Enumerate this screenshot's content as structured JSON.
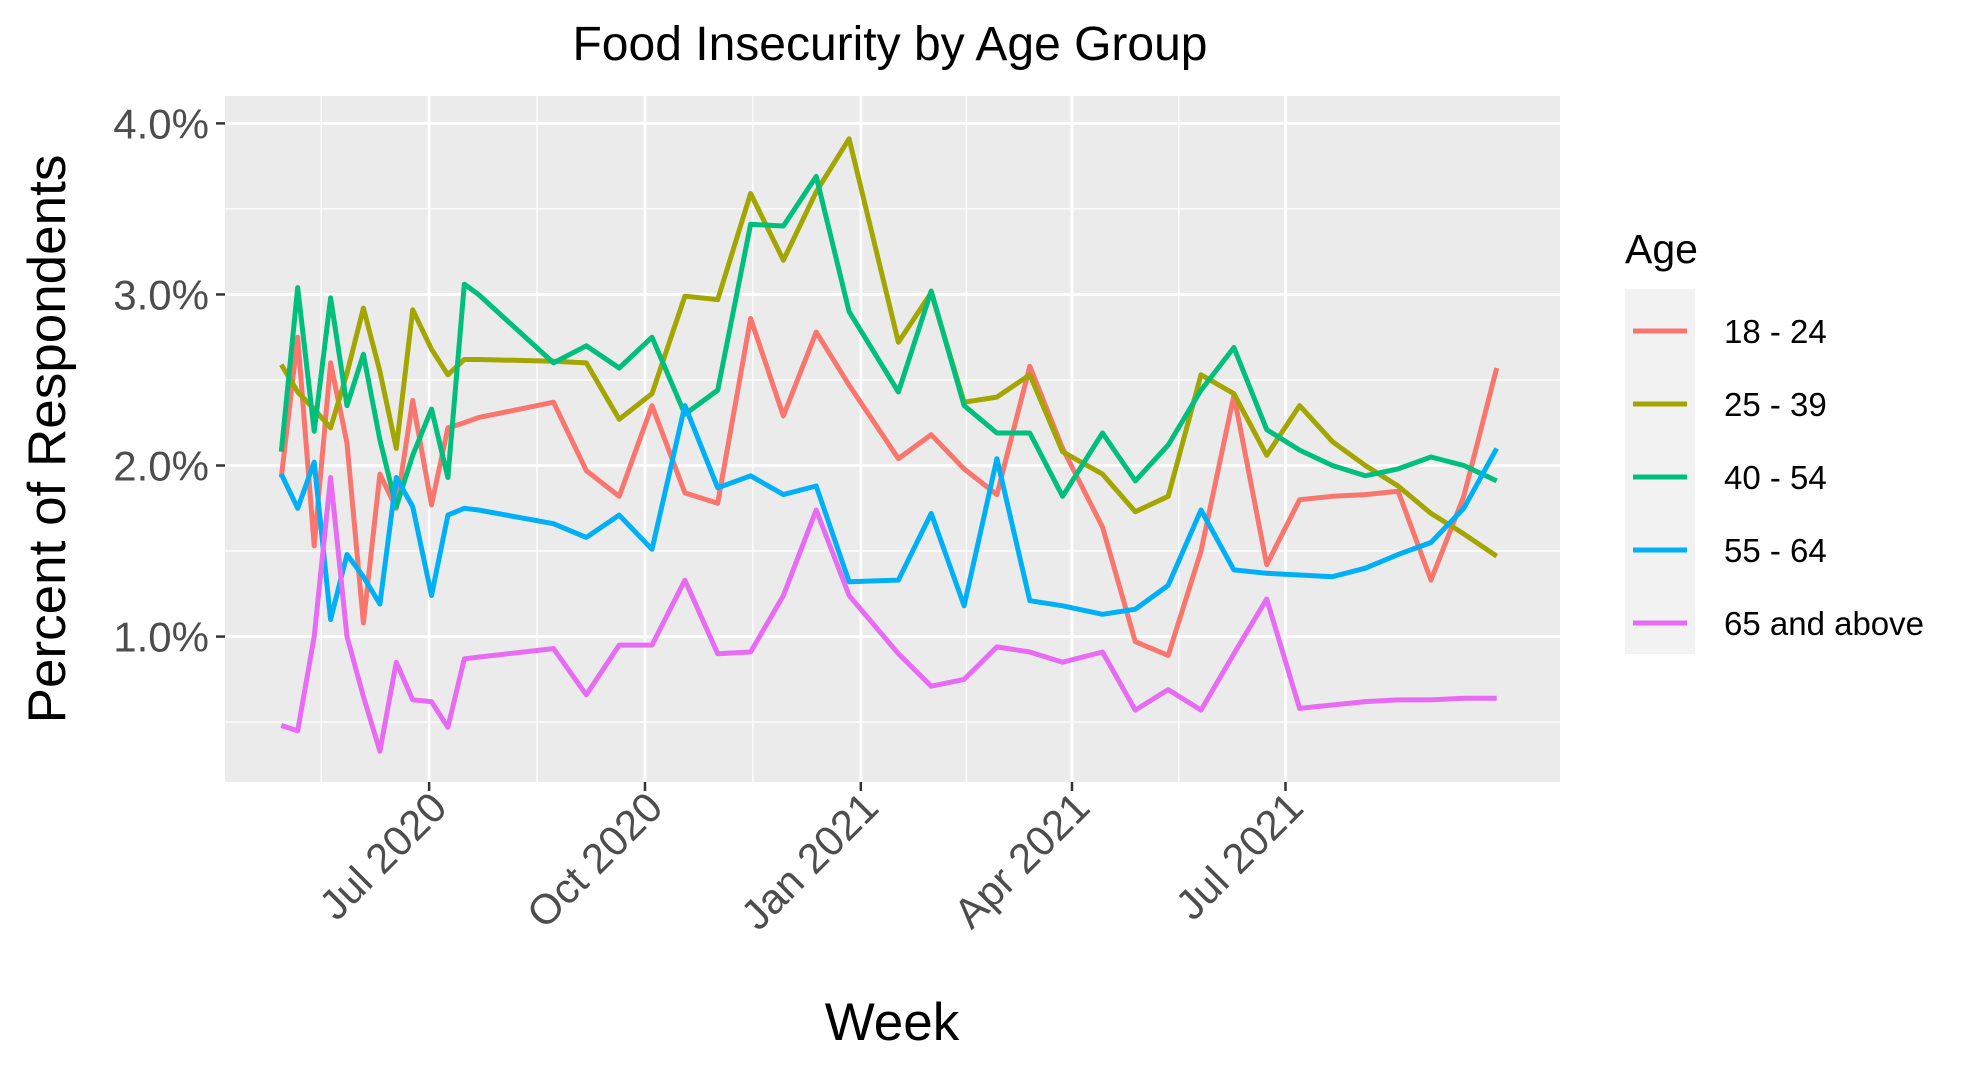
{
  "chart_data": {
    "type": "line",
    "title": "Food Insecurity by Age Group",
    "xlabel": "Week",
    "ylabel": "Percent of Respondents",
    "x": [
      "2020-04-29",
      "2020-05-06",
      "2020-05-13",
      "2020-05-20",
      "2020-05-27",
      "2020-06-03",
      "2020-06-10",
      "2020-06-17",
      "2020-06-24",
      "2020-07-02",
      "2020-07-09",
      "2020-07-16",
      "2020-07-22",
      "2020-08-23",
      "2020-09-06",
      "2020-09-20",
      "2020-10-04",
      "2020-10-18",
      "2020-11-01",
      "2020-11-15",
      "2020-11-29",
      "2020-12-13",
      "2020-12-27",
      "2021-01-17",
      "2021-01-31",
      "2021-02-14",
      "2021-02-28",
      "2021-03-14",
      "2021-03-28",
      "2021-04-14",
      "2021-04-28",
      "2021-05-12",
      "2021-05-26",
      "2021-06-09",
      "2021-06-23",
      "2021-07-07",
      "2021-07-21",
      "2021-08-04",
      "2021-08-18",
      "2021-09-01",
      "2021-09-15",
      "2021-09-29"
    ],
    "x_ticks": [
      "Jul 2020",
      "Oct 2020",
      "Jan 2021",
      "Apr 2021",
      "Jul 2021"
    ],
    "x_tick_dates": [
      "2020-07-01",
      "2020-10-01",
      "2021-01-01",
      "2021-04-01",
      "2021-07-01"
    ],
    "xlim": [
      "2020-04-05",
      "2021-10-26"
    ],
    "ylim": [
      0.0015,
      0.0416
    ],
    "y_ticks": [
      0.01,
      0.02,
      0.03,
      0.04
    ],
    "y_tick_labels": [
      "1.0%",
      "2.0%",
      "3.0%",
      "4.0%"
    ],
    "grid": true,
    "legend_position": "right",
    "legend_title": "Age",
    "series": [
      {
        "name": "18 - 24",
        "color": "#F8766D",
        "values": [
          0.0193,
          0.0275,
          0.0153,
          0.026,
          0.0213,
          0.0108,
          0.0195,
          0.0175,
          0.0238,
          0.0177,
          0.0222,
          0.0225,
          0.0228,
          0.0237,
          0.0197,
          0.0182,
          0.0235,
          0.0184,
          0.0178,
          0.0286,
          0.0229,
          0.0278,
          0.0247,
          0.0204,
          0.0218,
          0.0198,
          0.0183,
          0.0258,
          0.021,
          0.0164,
          0.0097,
          0.0089,
          0.015,
          0.0241,
          0.0142,
          0.018,
          0.0182,
          0.0183,
          0.0185,
          0.0133,
          0.0182,
          0.0257
        ]
      },
      {
        "name": "25 - 39",
        "color": "#A3A500",
        "values": [
          0.0259,
          0.0243,
          0.0233,
          0.0222,
          0.0254,
          0.0292,
          0.0255,
          0.021,
          0.0291,
          0.0268,
          0.0253,
          0.0262,
          0.0262,
          0.0261,
          0.026,
          0.0227,
          0.0242,
          0.0299,
          0.0297,
          0.0359,
          0.032,
          0.036,
          0.0391,
          0.0272,
          0.0301,
          0.0237,
          0.024,
          0.0253,
          0.0208,
          0.0195,
          0.0173,
          0.0182,
          0.0253,
          0.0242,
          0.0206,
          0.0235,
          0.0214,
          0.02,
          0.0188,
          0.0172,
          0.016,
          0.0147
        ]
      },
      {
        "name": "40 - 54",
        "color": "#00BF7D",
        "values": [
          0.0208,
          0.0304,
          0.022,
          0.0298,
          0.0235,
          0.0265,
          0.0215,
          0.0176,
          0.0206,
          0.0233,
          0.0193,
          0.0306,
          0.03,
          0.026,
          0.027,
          0.0257,
          0.0275,
          0.023,
          0.0244,
          0.0341,
          0.034,
          0.0369,
          0.029,
          0.0243,
          0.0302,
          0.0235,
          0.0219,
          0.0219,
          0.0182,
          0.0219,
          0.0191,
          0.0212,
          0.0244,
          0.0269,
          0.0221,
          0.0209,
          0.02,
          0.0194,
          0.0198,
          0.0205,
          0.02,
          0.0191
        ]
      },
      {
        "name": "55 - 64",
        "color": "#00B0F6",
        "values": [
          0.0195,
          0.0175,
          0.0202,
          0.011,
          0.0148,
          0.0135,
          0.0119,
          0.0193,
          0.0176,
          0.0124,
          0.0171,
          0.0175,
          0.0174,
          0.0166,
          0.0158,
          0.0171,
          0.0151,
          0.0235,
          0.0187,
          0.0194,
          0.0183,
          0.0188,
          0.0132,
          0.0133,
          0.0172,
          0.0118,
          0.0204,
          0.0121,
          0.0118,
          0.0113,
          0.0116,
          0.013,
          0.0174,
          0.0139,
          0.0137,
          0.0136,
          0.0135,
          0.014,
          0.0148,
          0.0155,
          0.0175,
          0.021
        ]
      },
      {
        "name": "65 and above",
        "color": "#E76BF3",
        "values": [
          0.0048,
          0.0045,
          0.01,
          0.0193,
          0.01,
          0.0065,
          0.0033,
          0.0085,
          0.0063,
          0.0062,
          0.0047,
          0.0087,
          0.0088,
          0.0093,
          0.0066,
          0.0095,
          0.0095,
          0.0133,
          0.009,
          0.0091,
          0.0124,
          0.0174,
          0.0124,
          0.009,
          0.0071,
          0.0075,
          0.0094,
          0.0091,
          0.0085,
          0.0091,
          0.0057,
          0.0069,
          0.0057,
          0.009,
          0.0122,
          0.0058,
          0.006,
          0.0062,
          0.0063,
          0.0063,
          0.0064,
          0.0064
        ]
      }
    ]
  }
}
